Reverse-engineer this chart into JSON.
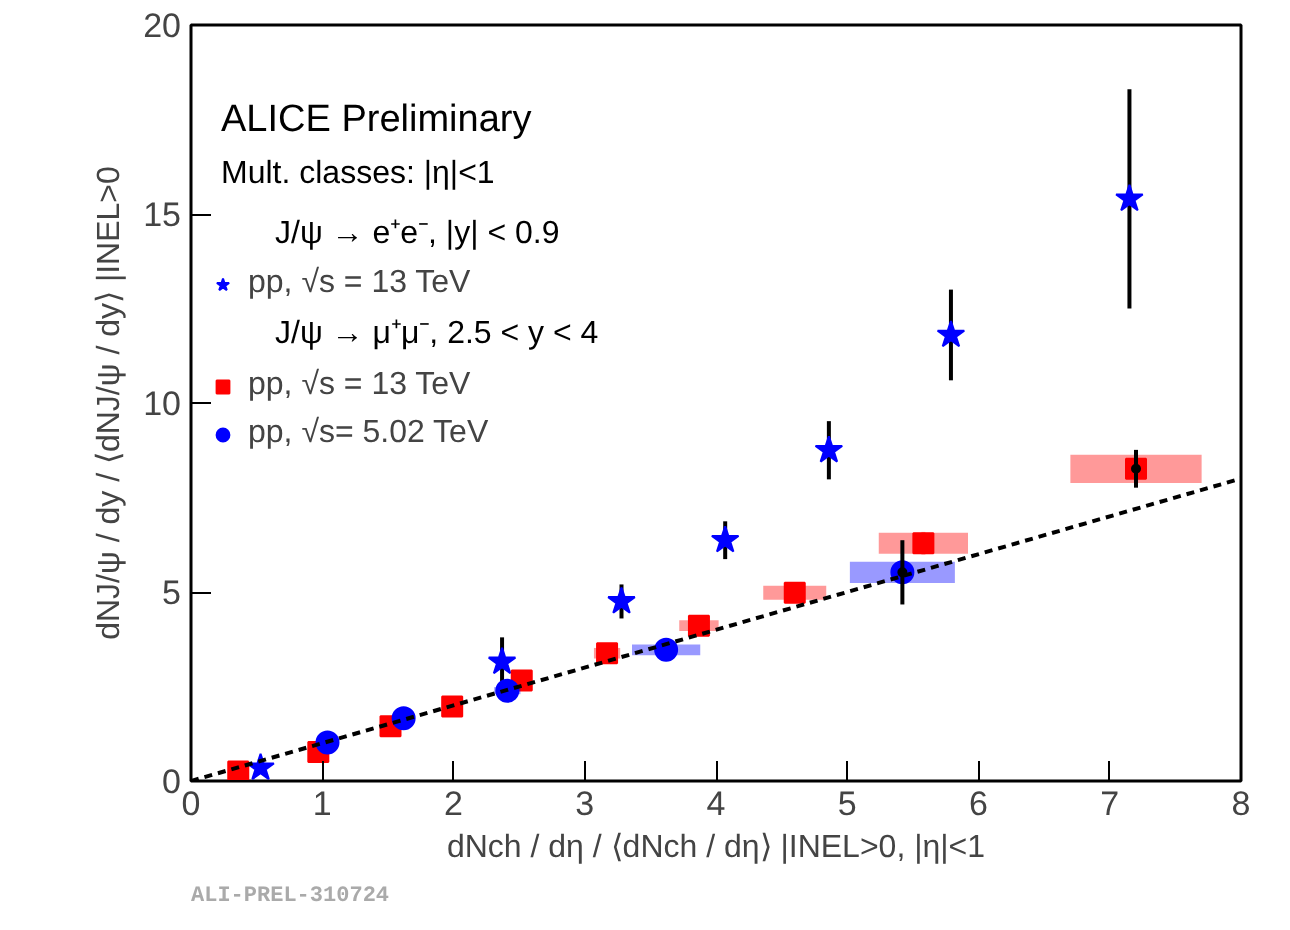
{
  "chart_data": {
    "type": "scatter",
    "xlabel": "dNch / dη / ⟨dNch / dη⟩ |INEL>0, |η|<1",
    "ylabel": "dNJ/ψ / dy / ⟨dNJ/ψ / dy⟩ |INEL>0",
    "xlim": [
      0,
      8
    ],
    "xticks": [
      0,
      1,
      2,
      3,
      4,
      5,
      6,
      7,
      8
    ],
    "ylim": [
      0,
      20
    ],
    "yticks": [
      0,
      5,
      10,
      15,
      20
    ],
    "grid": false,
    "legend": "top left",
    "annotations": [
      "ALICE Preliminary",
      "Mult. classes: |η|<1",
      "J/ψ → e⁺e⁻, |y| < 0.9",
      "J/ψ → μ⁺μ⁻, 2.5 < y < 4",
      "ALI-PREL-310724"
    ],
    "series": [
      {
        "name": "pp, √s = 13 TeV",
        "color": "#0000ff",
        "marker": "star",
        "x": [
          0.53,
          2.37,
          3.28,
          4.07,
          4.86,
          5.79,
          7.15
        ],
        "values": [
          0.35,
          3.15,
          4.75,
          6.37,
          8.75,
          11.8,
          15.4
        ],
        "errors": [
          null,
          0.65,
          0.45,
          0.5,
          0.77,
          1.2,
          2.9
        ]
      },
      {
        "name": "pp, √s = 13 TeV",
        "color": "#ff0000",
        "marker": "square",
        "x": [
          0.36,
          0.97,
          1.52,
          1.99,
          2.52,
          3.17,
          3.87,
          4.6,
          5.58,
          7.2
        ],
        "values": [
          0.25,
          0.77,
          1.45,
          1.97,
          2.66,
          3.38,
          4.11,
          4.98,
          6.29,
          8.26
        ],
        "xerrors": [
          0.05,
          0.05,
          0.05,
          0.05,
          0.05,
          0.1,
          0.15,
          0.24,
          0.34,
          0.5
        ],
        "errors": [
          0.1,
          0.1,
          0.1,
          0.1,
          0.1,
          0.15,
          0.15,
          0.2,
          0.3,
          0.4
        ]
      },
      {
        "name": "pp, √s= 5.02 TeV",
        "color": "#0000ff",
        "marker": "circle",
        "x": [
          1.04,
          1.62,
          2.41,
          3.62,
          5.42
        ],
        "values": [
          1.02,
          1.66,
          2.39,
          3.47,
          5.52
        ],
        "xerrors": [
          0.05,
          0.05,
          0.1,
          0.26,
          0.4
        ],
        "errors": [
          0.1,
          0.1,
          0.1,
          0.15,
          0.3
        ]
      },
      {
        "marker": "circle",
        "color": "#000000",
        "x": [
          5.42,
          7.2
        ],
        "values": [
          5.52,
          8.26
        ],
        "errors": [
          0.85,
          0.5
        ]
      },
      {
        "type": "line",
        "line_style": "dashed",
        "color": "#000000",
        "x": [
          0,
          8
        ],
        "values": [
          0,
          8
        ]
      }
    ]
  }
}
